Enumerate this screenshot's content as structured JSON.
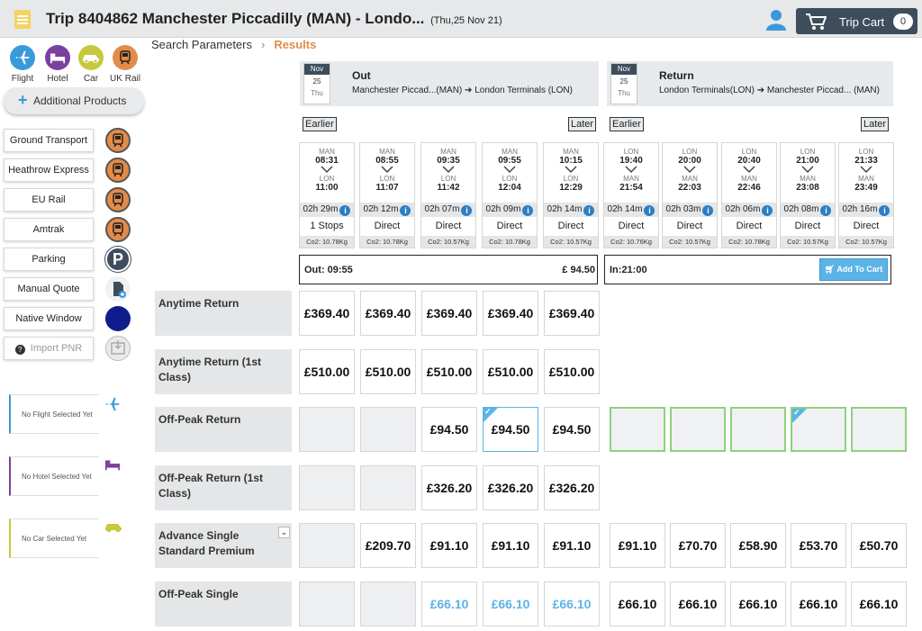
{
  "header": {
    "title": "Trip 8404862 Manchester Piccadilly (MAN) - Londo...",
    "date_sub": "(Thu,25 Nov 21)",
    "cart_label": "Trip Cart",
    "cart_count": "0"
  },
  "products": [
    {
      "label": "Flight",
      "icon": "airplane-icon",
      "color": "#3a9ad9"
    },
    {
      "label": "Hotel",
      "icon": "bed-icon",
      "color": "#7b3f9e"
    },
    {
      "label": "Car",
      "icon": "car-icon",
      "color": "#c5c93b"
    },
    {
      "label": "UK Rail",
      "icon": "train-icon",
      "color": "#e38c4a"
    }
  ],
  "additional_products": "Additional Products",
  "side_buttons": [
    {
      "label": "Ground Transport",
      "icon": "train-icon"
    },
    {
      "label": "Heathrow Express",
      "icon": "train-icon"
    },
    {
      "label": "EU Rail",
      "icon": "train-icon"
    },
    {
      "label": "Amtrak",
      "icon": "train-icon"
    },
    {
      "label": "Parking",
      "icon": "parking-icon"
    },
    {
      "label": "Manual Quote",
      "icon": "document-add-icon"
    },
    {
      "label": "Native Window",
      "icon": "window-icon"
    },
    {
      "label": "Import PNR",
      "icon": "import-icon"
    }
  ],
  "placeholders": [
    {
      "text": "No Flight Selected Yet",
      "color": "#3a9ad9"
    },
    {
      "text": "No Hotel Selected Yet",
      "color": "#7b3f9e"
    },
    {
      "text": "No Car Selected Yet",
      "color": "#c5c93b"
    }
  ],
  "breadcrumb": {
    "parent": "Search Parameters",
    "current": "Results"
  },
  "outbound": {
    "month": "Nov",
    "day": "25",
    "weekday": "Thu",
    "direction": "Out",
    "route": "Manchester Piccad...(MAN) ➔ London Terminals (LON)",
    "earlier": "Earlier",
    "later": "Later",
    "trains": [
      {
        "from": "MAN",
        "dep": "08:31",
        "to": "LON",
        "arr": "11:00",
        "duration": "02h 29m",
        "stops": "1 Stops",
        "co2": "Co2: 10.78Kg"
      },
      {
        "from": "MAN",
        "dep": "08:55",
        "to": "LON",
        "arr": "11:07",
        "duration": "02h 12m",
        "stops": "Direct",
        "co2": "Co2: 10.78Kg"
      },
      {
        "from": "MAN",
        "dep": "09:35",
        "to": "LON",
        "arr": "11:42",
        "duration": "02h 07m",
        "stops": "Direct",
        "co2": "Co2: 10.57Kg"
      },
      {
        "from": "MAN",
        "dep": "09:55",
        "to": "LON",
        "arr": "12:04",
        "duration": "02h 09m",
        "stops": "Direct",
        "co2": "Co2: 10.78Kg"
      },
      {
        "from": "MAN",
        "dep": "10:15",
        "to": "LON",
        "arr": "12:29",
        "duration": "02h 14m",
        "stops": "Direct",
        "co2": "Co2: 10.57Kg"
      }
    ],
    "selection_label": "Out: 09:55",
    "selection_price": "£ 94.50"
  },
  "inbound": {
    "month": "Nov",
    "day": "25",
    "weekday": "Thu",
    "direction": "Return",
    "route": "London Terminals(LON) ➔ Manchester Piccad... (MAN)",
    "earlier": "Earlier",
    "later": "Later",
    "trains": [
      {
        "from": "LON",
        "dep": "19:40",
        "to": "MAN",
        "arr": "21:54",
        "duration": "02h 14m",
        "stops": "Direct",
        "co2": "Co2: 10.76Kg"
      },
      {
        "from": "LON",
        "dep": "20:00",
        "to": "MAN",
        "arr": "22:03",
        "duration": "02h 03m",
        "stops": "Direct",
        "co2": "Co2: 10.57Kg"
      },
      {
        "from": "LON",
        "dep": "20:40",
        "to": "MAN",
        "arr": "22:46",
        "duration": "02h 06m",
        "stops": "Direct",
        "co2": "Co2: 10.78Kg"
      },
      {
        "from": "LON",
        "dep": "21:00",
        "to": "MAN",
        "arr": "23:08",
        "duration": "02h 08m",
        "stops": "Direct",
        "co2": "Co2: 10.57Kg"
      },
      {
        "from": "LON",
        "dep": "21:33",
        "to": "MAN",
        "arr": "23:49",
        "duration": "02h 16m",
        "stops": "Direct",
        "co2": "Co2: 10.57Kg"
      }
    ],
    "selection_label": "In:21:00",
    "add_to_cart": "Add To Cart"
  },
  "fares": [
    {
      "label": "Anytime Return",
      "out": [
        "£369.40",
        "£369.40",
        "£369.40",
        "£369.40",
        "£369.40"
      ],
      "in": [
        null,
        null,
        null,
        null,
        null
      ]
    },
    {
      "label": "Anytime Return (1st Class)",
      "out": [
        "£510.00",
        "£510.00",
        "£510.00",
        "£510.00",
        "£510.00"
      ],
      "in": [
        null,
        null,
        null,
        null,
        null
      ]
    },
    {
      "label": "Off-Peak Return",
      "out": [
        "",
        "",
        "£94.50",
        "£94.50",
        "£94.50"
      ],
      "in": [
        "",
        "",
        "",
        "",
        ""
      ],
      "selected_out": 3,
      "selected_in": 3
    },
    {
      "label": "Off-Peak Return (1st Class)",
      "out": [
        "",
        "",
        "£326.20",
        "£326.20",
        "£326.20"
      ],
      "in": [
        null,
        null,
        null,
        null,
        null
      ]
    },
    {
      "label": "Advance Single Standard Premium",
      "dropdown": true,
      "out": [
        "",
        "£209.70",
        "£91.10",
        "£91.10",
        "£91.10"
      ],
      "in": [
        "£91.10",
        "£70.70",
        "£58.90",
        "£53.70",
        "£50.70"
      ]
    },
    {
      "label": "Off-Peak Single",
      "blue_out": true,
      "out": [
        "",
        "",
        "£66.10",
        "£66.10",
        "£66.10"
      ],
      "in": [
        "£66.10",
        "£66.10",
        "£66.10",
        "£66.10",
        "£66.10"
      ]
    }
  ]
}
